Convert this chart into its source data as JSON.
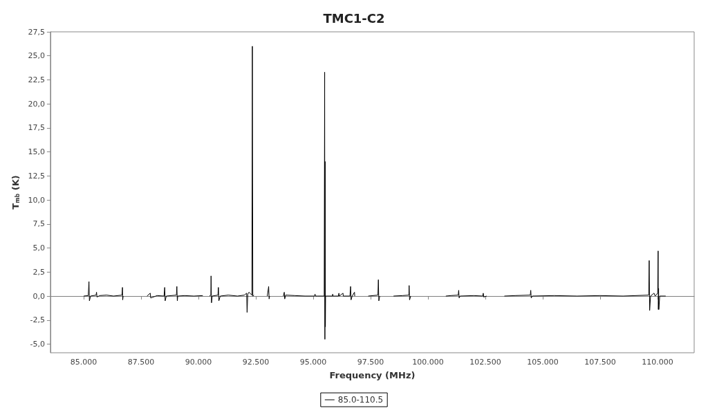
{
  "chart_data": {
    "type": "line",
    "title": "TMC1-C2",
    "xlabel": "Frequency (MHz)",
    "ylabel": "T$_{mb}$ (K)",
    "xlim": [
      83550,
      111600
    ],
    "xticks": [
      {
        "value": 85000,
        "label": "85.000"
      },
      {
        "value": 87500,
        "label": "87.500"
      },
      {
        "value": 90000,
        "label": "90.000"
      },
      {
        "value": 92500,
        "label": "92.500"
      },
      {
        "value": 95000,
        "label": "95.000"
      },
      {
        "value": 97500,
        "label": "97.500"
      },
      {
        "value": 100000,
        "label": "100.000"
      },
      {
        "value": 102500,
        "label": "102.500"
      },
      {
        "value": 105000,
        "label": "105.000"
      },
      {
        "value": 107500,
        "label": "107.500"
      },
      {
        "value": 110000,
        "label": "110.000"
      }
    ],
    "ylim": [
      -5.9,
      27.5
    ],
    "yticks": [
      {
        "value": -5,
        "label": "-5,0"
      },
      {
        "value": -2.5,
        "label": "-2,5"
      },
      {
        "value": 0,
        "label": "0,0"
      },
      {
        "value": 2.5,
        "label": "2,5"
      },
      {
        "value": 5,
        "label": "5,0"
      },
      {
        "value": 7.5,
        "label": "7,5"
      },
      {
        "value": 10,
        "label": "10,0"
      },
      {
        "value": 12.5,
        "label": "12,5"
      },
      {
        "value": 15,
        "label": "15,0"
      },
      {
        "value": 17.5,
        "label": "17,5"
      },
      {
        "value": 20,
        "label": "20,0"
      },
      {
        "value": 22.5,
        "label": "22,5"
      },
      {
        "value": 25,
        "label": "25,0"
      },
      {
        "value": 27.5,
        "label": "27,5"
      }
    ],
    "grid": false,
    "legend": "bottom",
    "marker": "none",
    "ref_lines": [
      {
        "axis": "y",
        "value": 0,
        "color": "#808080"
      }
    ],
    "series": [
      {
        "name": "85.0-110.5",
        "color": "#000000",
        "x": [
          85000,
          85200,
          85230,
          85250,
          85300,
          85540,
          85560,
          85580,
          85700,
          86000,
          86300,
          86670,
          86690,
          86700,
          86720,
          86800,
          87760,
          87900,
          87920,
          88200,
          88500,
          88530,
          88550,
          88600,
          89040,
          89060,
          89080,
          89100,
          89400,
          89800,
          90190,
          90300,
          90480,
          90540,
          90550,
          90570,
          90600,
          90850,
          90870,
          90890,
          90950,
          91300,
          91700,
          92000,
          92100,
          92120,
          92150,
          92200,
          92330,
          92350,
          92370,
          92420,
          92600,
          93000,
          93060,
          93080,
          93100,
          93400,
          93700,
          93740,
          93760,
          93800,
          94200,
          94640,
          94700,
          95060,
          95080,
          95100,
          95200,
          95480,
          95500,
          95510,
          95520,
          95530,
          95540,
          95600,
          95840,
          95850,
          95860,
          95950,
          96100,
          96120,
          96140,
          96300,
          96310,
          96600,
          96630,
          96650,
          96700,
          96800,
          96810,
          96900,
          97400,
          97820,
          97840,
          97860,
          97900,
          98000,
          98500,
          98900,
          99170,
          99180,
          99200,
          99250,
          99300,
          100780,
          101000,
          101320,
          101340,
          101360,
          101400,
          102000,
          102390,
          102410,
          102430,
          102560,
          102700,
          103330,
          103800,
          104460,
          104480,
          104500,
          104550,
          105500,
          106500,
          107500,
          108500,
          109620,
          109640,
          109660,
          109700,
          109850,
          109900,
          110010,
          110030,
          110040,
          110050,
          110060,
          110100,
          110360
        ],
        "values": [
          0,
          0.05,
          1.5,
          -0.5,
          0,
          0.1,
          0.4,
          -0.1,
          0.05,
          0.1,
          0,
          0.1,
          0.9,
          -0.4,
          0,
          null,
          0,
          0.3,
          -0.2,
          0.05,
          0,
          0.9,
          -0.5,
          0,
          0.1,
          1.0,
          -0.5,
          0,
          0.05,
          0,
          0.05,
          null,
          0,
          0.1,
          2.1,
          -0.7,
          0,
          0.1,
          0.9,
          -0.5,
          0,
          0.1,
          0,
          0.1,
          0.3,
          -1.7,
          0.2,
          0.4,
          0.1,
          26.0,
          0,
          0.1,
          null,
          0,
          1.0,
          -0.3,
          0,
          null,
          0,
          0.4,
          -0.3,
          0.1,
          0.05,
          0,
          0,
          0,
          0.2,
          0,
          0,
          0,
          23.3,
          -4.5,
          14.0,
          -3.2,
          0,
          0,
          0,
          0.2,
          0,
          0,
          0,
          0.3,
          0,
          0.3,
          0,
          0,
          1.0,
          -0.4,
          0,
          0.4,
          0,
          null,
          0,
          0.1,
          1.7,
          -0.5,
          0,
          null,
          0,
          0.05,
          0.1,
          1.1,
          -0.4,
          0,
          null,
          0,
          0.05,
          0.1,
          0.6,
          -0.2,
          0,
          0.05,
          0,
          0.3,
          -0.1,
          0,
          null,
          0,
          0.05,
          0.1,
          0.6,
          -0.2,
          0,
          0.05,
          0,
          0.05,
          0,
          0.1,
          3.7,
          -1.5,
          0,
          0.3,
          0,
          0.3,
          4.7,
          -1.4,
          0.8,
          -1.4,
          0,
          0
        ]
      }
    ]
  }
}
